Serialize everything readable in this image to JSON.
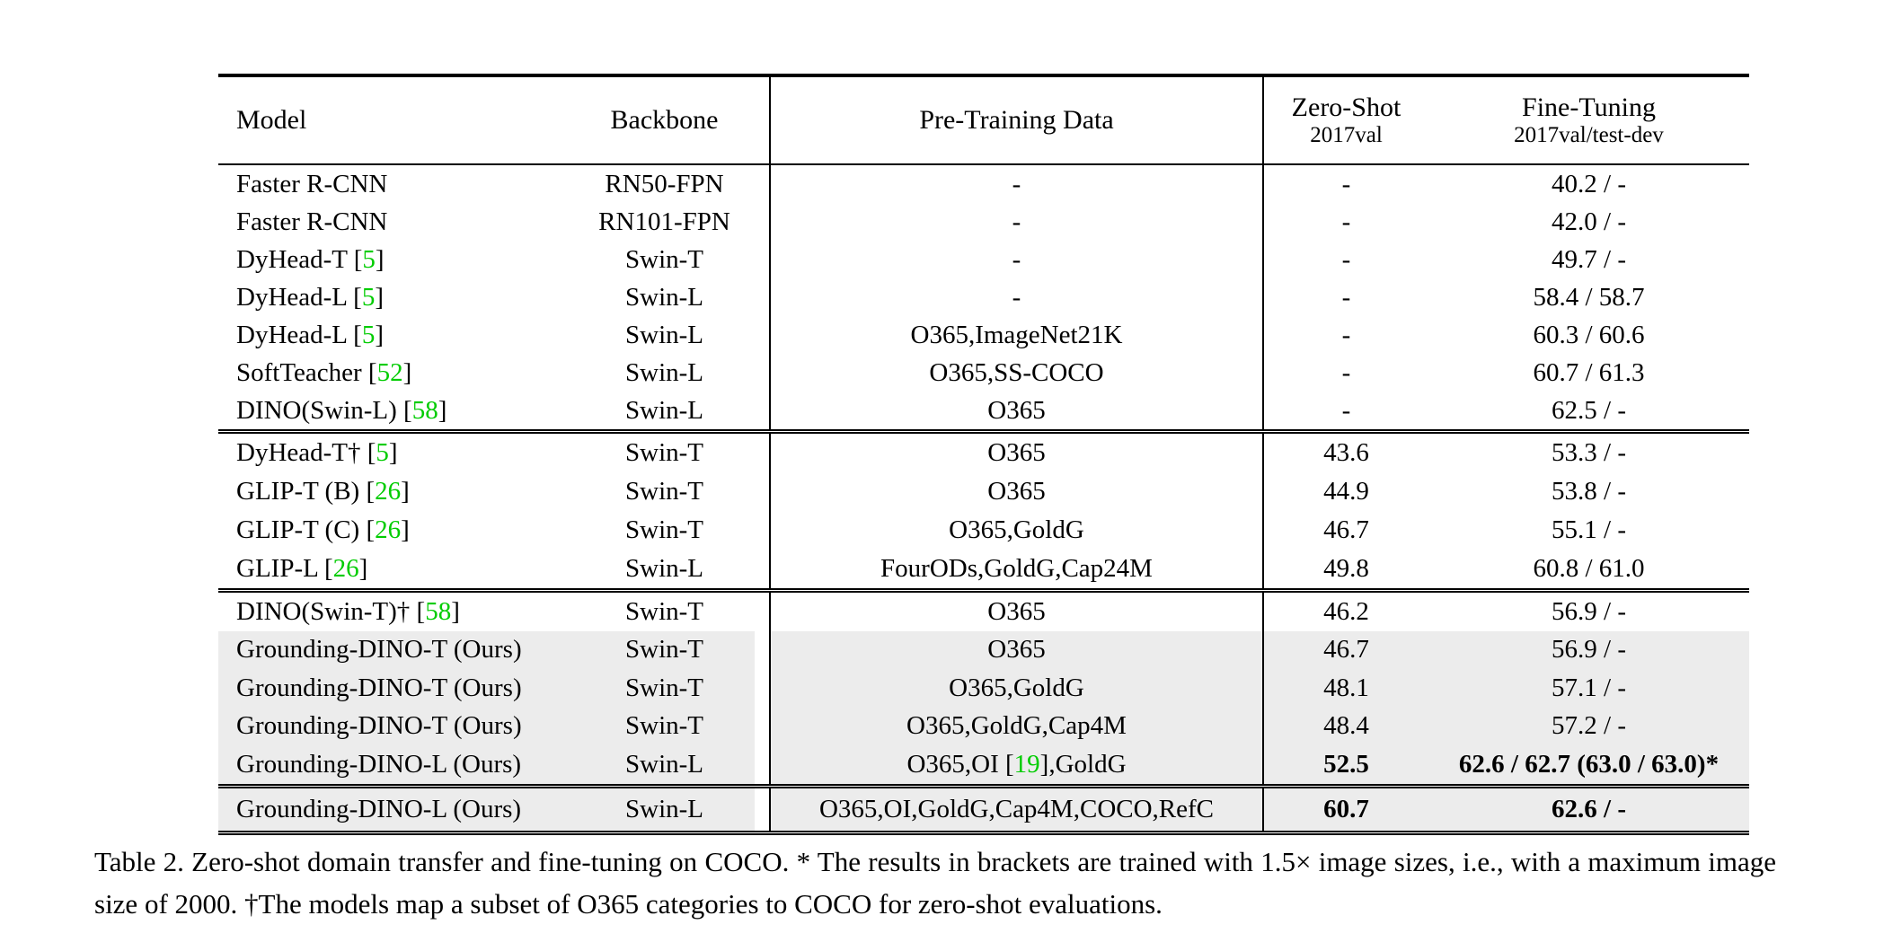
{
  "table": {
    "columns": [
      {
        "label": "Model",
        "sublabel": ""
      },
      {
        "label": "Backbone",
        "sublabel": ""
      },
      {
        "label": "Pre-Training Data",
        "sublabel": ""
      },
      {
        "label": "Zero-Shot",
        "sublabel": "2017val"
      },
      {
        "label": "Fine-Tuning",
        "sublabel": "2017val/test-dev"
      }
    ],
    "sections": [
      {
        "rows": [
          {
            "model": "Faster R-CNN",
            "backbone": "RN50-FPN",
            "pretrain": "-",
            "zero_shot": "-",
            "fine_tune": "40.2 / -",
            "highlight": false,
            "bold_zero_shot": false,
            "bold_fine_tune": false
          },
          {
            "model": "Faster R-CNN",
            "backbone": "RN101-FPN",
            "pretrain": "-",
            "zero_shot": "-",
            "fine_tune": "42.0 / -",
            "highlight": false,
            "bold_zero_shot": false,
            "bold_fine_tune": false
          },
          {
            "model": "DyHead-T [5]",
            "backbone": "Swin-T",
            "pretrain": "-",
            "zero_shot": "-",
            "fine_tune": "49.7 / -",
            "highlight": false,
            "bold_zero_shot": false,
            "bold_fine_tune": false
          },
          {
            "model": "DyHead-L [5]",
            "backbone": "Swin-L",
            "pretrain": "-",
            "zero_shot": "-",
            "fine_tune": "58.4 / 58.7",
            "highlight": false,
            "bold_zero_shot": false,
            "bold_fine_tune": false
          },
          {
            "model": "DyHead-L [5]",
            "backbone": "Swin-L",
            "pretrain": "O365,ImageNet21K",
            "zero_shot": "-",
            "fine_tune": "60.3 / 60.6",
            "highlight": false,
            "bold_zero_shot": false,
            "bold_fine_tune": false
          },
          {
            "model": "SoftTeacher [52]",
            "backbone": "Swin-L",
            "pretrain": "O365,SS-COCO",
            "zero_shot": "-",
            "fine_tune": "60.7 / 61.3",
            "highlight": false,
            "bold_zero_shot": false,
            "bold_fine_tune": false
          },
          {
            "model": "DINO(Swin-L) [58]",
            "backbone": "Swin-L",
            "pretrain": "O365",
            "zero_shot": "-",
            "fine_tune": "62.5 / -",
            "highlight": false,
            "bold_zero_shot": false,
            "bold_fine_tune": false
          }
        ]
      },
      {
        "rows": [
          {
            "model": "DyHead-T† [5]",
            "backbone": "Swin-T",
            "pretrain": "O365",
            "zero_shot": "43.6",
            "fine_tune": "53.3 / -",
            "highlight": false,
            "bold_zero_shot": false,
            "bold_fine_tune": false
          },
          {
            "model": "GLIP-T (B) [26]",
            "backbone": "Swin-T",
            "pretrain": "O365",
            "zero_shot": "44.9",
            "fine_tune": "53.8 / -",
            "highlight": false,
            "bold_zero_shot": false,
            "bold_fine_tune": false
          },
          {
            "model": "GLIP-T (C) [26]",
            "backbone": "Swin-T",
            "pretrain": "O365,GoldG",
            "zero_shot": "46.7",
            "fine_tune": "55.1 / -",
            "highlight": false,
            "bold_zero_shot": false,
            "bold_fine_tune": false
          },
          {
            "model": "GLIP-L [26]",
            "backbone": "Swin-L",
            "pretrain": "FourODs,GoldG,Cap24M",
            "zero_shot": "49.8",
            "fine_tune": "60.8 / 61.0",
            "highlight": false,
            "bold_zero_shot": false,
            "bold_fine_tune": false
          }
        ]
      },
      {
        "rows": [
          {
            "model": "DINO(Swin-T)† [58]",
            "backbone": "Swin-T",
            "pretrain": "O365",
            "zero_shot": "46.2",
            "fine_tune": "56.9 / -",
            "highlight": false,
            "bold_zero_shot": false,
            "bold_fine_tune": false
          },
          {
            "model": "Grounding-DINO-T (Ours)",
            "backbone": "Swin-T",
            "pretrain": "O365",
            "zero_shot": "46.7",
            "fine_tune": "56.9 / -",
            "highlight": true,
            "bold_zero_shot": false,
            "bold_fine_tune": false
          },
          {
            "model": "Grounding-DINO-T (Ours)",
            "backbone": "Swin-T",
            "pretrain": "O365,GoldG",
            "zero_shot": "48.1",
            "fine_tune": "57.1 / -",
            "highlight": true,
            "bold_zero_shot": false,
            "bold_fine_tune": false
          },
          {
            "model": "Grounding-DINO-T (Ours)",
            "backbone": "Swin-T",
            "pretrain": "O365,GoldG,Cap4M",
            "zero_shot": "48.4",
            "fine_tune": "57.2 / -",
            "highlight": true,
            "bold_zero_shot": false,
            "bold_fine_tune": false
          },
          {
            "model": "Grounding-DINO-L (Ours)",
            "backbone": "Swin-L",
            "pretrain": "O365,OI [19],GoldG",
            "zero_shot": "52.5",
            "fine_tune": "62.6 / 62.7 (63.0 / 63.0)*",
            "highlight": true,
            "bold_zero_shot": true,
            "bold_fine_tune": true
          }
        ]
      },
      {
        "rows": [
          {
            "model": "Grounding-DINO-L (Ours)",
            "backbone": "Swin-L",
            "pretrain": "O365,OI,GoldG,Cap4M,COCO,RefC",
            "zero_shot": "60.7",
            "fine_tune": "62.6 / -",
            "highlight": true,
            "bold_zero_shot": true,
            "bold_fine_tune": true
          }
        ]
      }
    ]
  },
  "caption": "Table 2. Zero-shot domain transfer and fine-tuning on COCO. * The results in brackets are trained with 1.5× image sizes, i.e., with a maximum image size of 2000. †The models map a subset of O365 categories to COCO for zero-shot evaluations.",
  "colors": {
    "citation_green": "#00cc00",
    "highlight_gray": "#ececec"
  }
}
